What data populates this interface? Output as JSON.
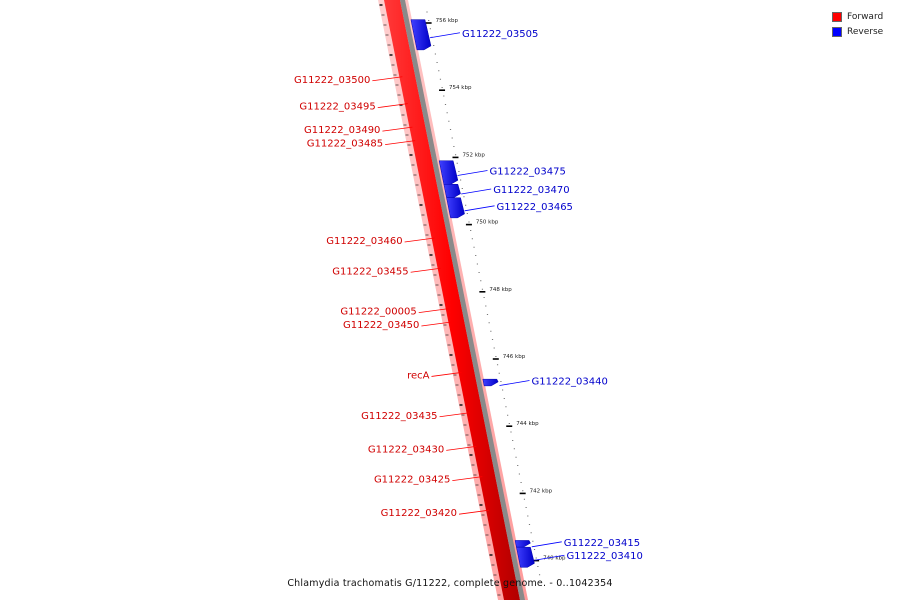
{
  "legend": {
    "forward": {
      "label": "Forward",
      "color": "#ff0000"
    },
    "reverse": {
      "label": "Reverse",
      "color": "#0000ff"
    }
  },
  "caption": "Chlamydia trachomatis G/11222, complete genome. - 0..1042354",
  "chart_data": {
    "type": "linear-genome-map",
    "unit": "kbp",
    "scale_labels": [
      {
        "kbp": 756,
        "label": "756 kbp"
      },
      {
        "kbp": 754,
        "label": "754 kbp"
      },
      {
        "kbp": 752,
        "label": "752 kbp"
      },
      {
        "kbp": 750,
        "label": "750 kbp"
      },
      {
        "kbp": 748,
        "label": "748 kbp"
      },
      {
        "kbp": 746,
        "label": "746 kbp"
      },
      {
        "kbp": 744,
        "label": "744 kbp"
      },
      {
        "kbp": 742,
        "label": "742 kbp"
      },
      {
        "kbp": 740,
        "label": "740 kbp"
      }
    ],
    "forward_genes": [
      {
        "name": "G11222_03500",
        "kbp": 754.4
      },
      {
        "name": "G11222_03495",
        "kbp": 753.6
      },
      {
        "name": "G11222_03490",
        "kbp": 752.9
      },
      {
        "name": "G11222_03485",
        "kbp": 752.5
      },
      {
        "name": "G11222_03460",
        "kbp": 749.6
      },
      {
        "name": "G11222_03455",
        "kbp": 748.7
      },
      {
        "name": "G11222_00005",
        "kbp": 747.5
      },
      {
        "name": "G11222_03450",
        "kbp": 747.1
      },
      {
        "name": "recA",
        "kbp": 745.6
      },
      {
        "name": "G11222_03435",
        "kbp": 744.4
      },
      {
        "name": "G11222_03430",
        "kbp": 743.4
      },
      {
        "name": "G11222_03425",
        "kbp": 742.5
      },
      {
        "name": "G11222_03420",
        "kbp": 741.5
      }
    ],
    "reverse_genes": [
      {
        "name": "G11222_03505",
        "start": 756.1,
        "end": 755.2
      },
      {
        "name": "G11222_03475",
        "start": 751.9,
        "end": 751.2
      },
      {
        "name": "G11222_03470",
        "start": 751.2,
        "end": 750.8
      },
      {
        "name": "G11222_03465",
        "start": 750.8,
        "end": 750.2
      },
      {
        "name": "G11222_03440",
        "start": 745.4,
        "end": 745.2
      },
      {
        "name": "G11222_03415",
        "start": 740.6,
        "end": 740.4
      },
      {
        "name": "G11222_03410",
        "start": 740.4,
        "end": 739.8
      }
    ]
  }
}
